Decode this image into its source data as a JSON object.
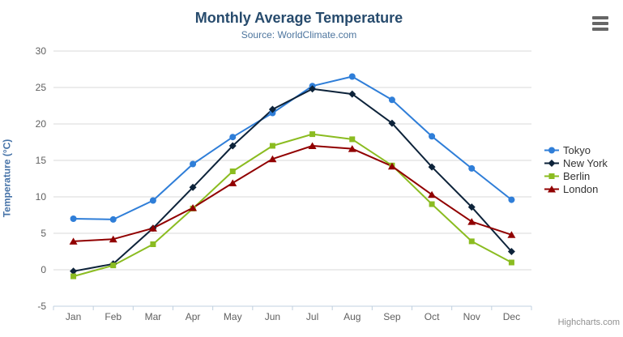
{
  "chart": {
    "icons": {
      "export_menu": "hamburger-icon"
    },
    "credits": "Highcharts.com"
  },
  "chart_data": {
    "type": "line",
    "title": "Monthly Average Temperature",
    "subtitle": "Source: WorldClimate.com",
    "categories": [
      "Jan",
      "Feb",
      "Mar",
      "Apr",
      "May",
      "Jun",
      "Jul",
      "Aug",
      "Sep",
      "Oct",
      "Nov",
      "Dec"
    ],
    "xlabel": "",
    "ylabel": "Temperature (°C)",
    "ylim": [
      -5,
      30
    ],
    "ytick_interval": 5,
    "yticks": [
      -5,
      0,
      5,
      10,
      15,
      20,
      25,
      30
    ],
    "grid": true,
    "legend_position": "right",
    "series": [
      {
        "name": "Tokyo",
        "color": "#2f7ed8",
        "marker": "circle",
        "values": [
          7.0,
          6.9,
          9.5,
          14.5,
          18.2,
          21.5,
          25.2,
          26.5,
          23.3,
          18.3,
          13.9,
          9.6
        ]
      },
      {
        "name": "New York",
        "color": "#0d233a",
        "marker": "diamond",
        "values": [
          -0.2,
          0.8,
          5.7,
          11.3,
          17.0,
          22.0,
          24.8,
          24.1,
          20.1,
          14.1,
          8.6,
          2.5
        ]
      },
      {
        "name": "Berlin",
        "color": "#8bbc21",
        "marker": "square",
        "values": [
          -0.9,
          0.6,
          3.5,
          8.4,
          13.5,
          17.0,
          18.6,
          17.9,
          14.3,
          9.0,
          3.9,
          1.0
        ]
      },
      {
        "name": "London",
        "color": "#910000",
        "marker": "triangle",
        "values": [
          3.9,
          4.2,
          5.7,
          8.5,
          11.9,
          15.2,
          17.0,
          16.6,
          14.2,
          10.3,
          6.6,
          4.8
        ]
      }
    ],
    "colors": {
      "grid_line": "#d8d8d8",
      "axis_line": "#c0d0e0",
      "tick_label": "#606060",
      "title": "#274b6d",
      "subtitle": "#4d759e",
      "y_axis_title": "#4572a7",
      "legend_text": "#333333",
      "credits": "#909090"
    }
  }
}
